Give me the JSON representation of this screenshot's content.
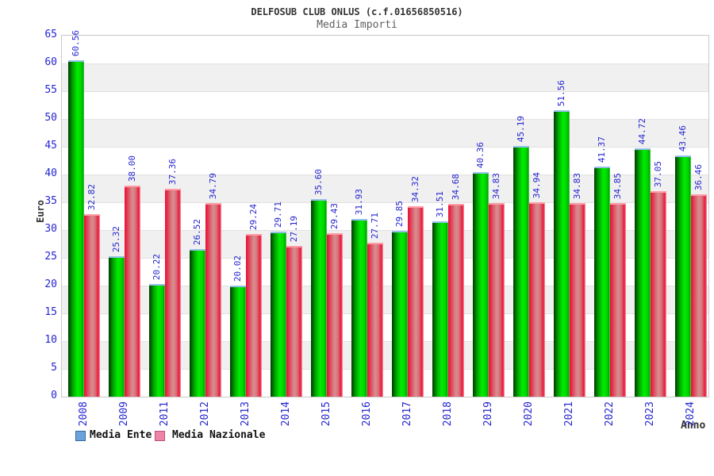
{
  "header": {
    "title": "DELFOSUB CLUB ONLUS (c.f.01656850516)",
    "subtitle": "Media Importi"
  },
  "axes": {
    "y_label": "Euro",
    "x_label": "Anno",
    "y_ticks": [
      0,
      5,
      10,
      15,
      20,
      25,
      30,
      35,
      40,
      45,
      50,
      55,
      60,
      65
    ]
  },
  "legend": {
    "position": "bottom-left",
    "items": [
      {
        "label": "Media Ente",
        "swatch_fill": "#6aa3dd",
        "swatch_border": "#38699f"
      },
      {
        "label": "Media Nazionale",
        "swatch_fill": "#f084a8",
        "swatch_border": "#b5547c"
      }
    ]
  },
  "colors": {
    "bar_ente": "#00cc00",
    "bar_nazionale": "#dd2244",
    "label_text": "#2525d2",
    "title_text": "#333333",
    "band_gray": "#f0f0f0"
  },
  "chart_data": {
    "type": "bar",
    "title": "DELFOSUB CLUB ONLUS (c.f.01656850516)",
    "subtitle": "Media Importi",
    "xlabel": "Anno",
    "ylabel": "Euro",
    "ylim": [
      0,
      65
    ],
    "y_tick_step": 5,
    "grid": "horizontal alternating bands",
    "legend_position": "bottom",
    "value_labels": "rotated 90deg, 2 decimals, above bars",
    "categories": [
      "2008",
      "2009",
      "2011",
      "2012",
      "2013",
      "2014",
      "2015",
      "2016",
      "2017",
      "2018",
      "2019",
      "2020",
      "2021",
      "2022",
      "2023",
      "2024"
    ],
    "series": [
      {
        "name": "Media Ente",
        "color": "green",
        "values": [
          60.56,
          25.32,
          20.22,
          26.52,
          20.02,
          29.71,
          35.6,
          31.93,
          29.85,
          31.51,
          40.36,
          45.19,
          51.56,
          41.37,
          44.72,
          43.46
        ]
      },
      {
        "name": "Media Nazionale",
        "color": "red",
        "values": [
          32.82,
          38.0,
          37.36,
          34.79,
          29.24,
          27.19,
          29.43,
          27.71,
          34.32,
          34.68,
          34.83,
          34.94,
          34.83,
          34.85,
          37.05,
          36.46
        ]
      }
    ]
  }
}
